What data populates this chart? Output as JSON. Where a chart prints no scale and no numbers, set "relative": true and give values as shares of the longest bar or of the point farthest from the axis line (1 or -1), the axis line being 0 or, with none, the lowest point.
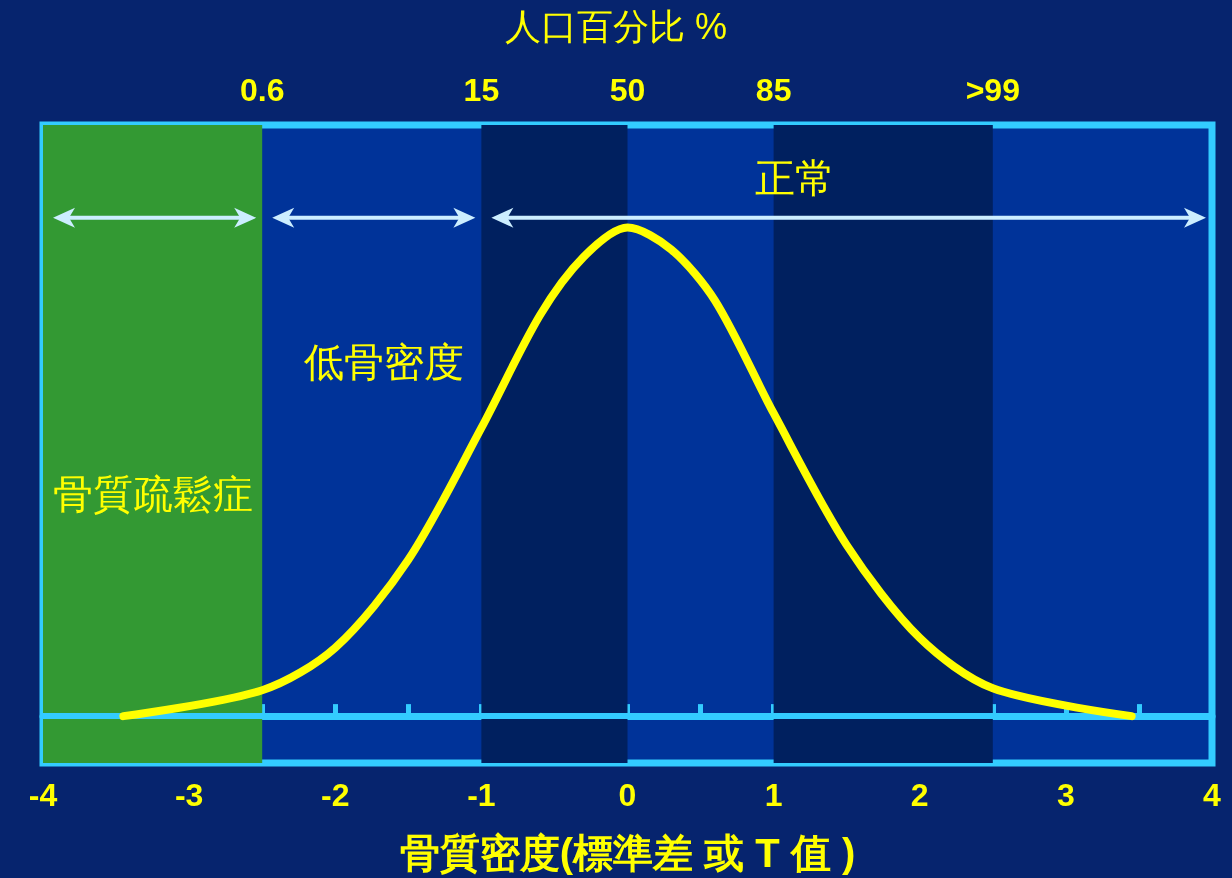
{
  "chart_data": {
    "type": "line",
    "relative": true,
    "xlabel": "骨質密度(標準差 或 T 值 )",
    "xlim": [
      -4,
      4
    ],
    "xticks": [
      -4,
      {
        "value": -3.5,
        "label": null
      },
      -3,
      {
        "value": -2.5,
        "label": null
      },
      -2,
      {
        "value": -1.5,
        "label": null
      },
      -1,
      {
        "value": -0.5,
        "label": null
      },
      0,
      {
        "value": 0.5,
        "label": null
      },
      1,
      {
        "value": 1.5,
        "label": null
      },
      2,
      {
        "value": 2.5,
        "label": null
      },
      3,
      {
        "value": 3.5,
        "label": null
      },
      4
    ],
    "series": [
      {
        "color": "#ffff00",
        "x": [
          -3.45,
          -2.5,
          -2,
          -1.5,
          -1,
          -0.6,
          -0.3,
          0,
          0.3,
          0.6,
          1,
          1.5,
          2,
          2.5,
          3.45
        ],
        "values": [
          0,
          0.053,
          0.14,
          0.32,
          0.59,
          0.82,
          0.94,
          1,
          0.955,
          0.85,
          0.62,
          0.35,
          0.16,
          0.057,
          0
        ]
      }
    ],
    "bands": [
      {
        "axis": "x",
        "from": -4,
        "to": -2.5,
        "label": "骨質疏鬆症",
        "color": "#339933"
      },
      {
        "axis": "x",
        "from": -1,
        "to": 0,
        "color": "#00205f"
      },
      {
        "axis": "x",
        "from": 1,
        "to": 2.5,
        "color": "#00205f"
      }
    ],
    "ref_lines": [
      {
        "axis": "y",
        "value": 0,
        "color": "#33ccff"
      }
    ],
    "annotations": [
      "人口百分比 %",
      "0.6",
      "15",
      "50",
      "85",
      ">99",
      "低骨密度",
      "正常"
    ],
    "grid": false,
    "line_style": "solid"
  }
}
